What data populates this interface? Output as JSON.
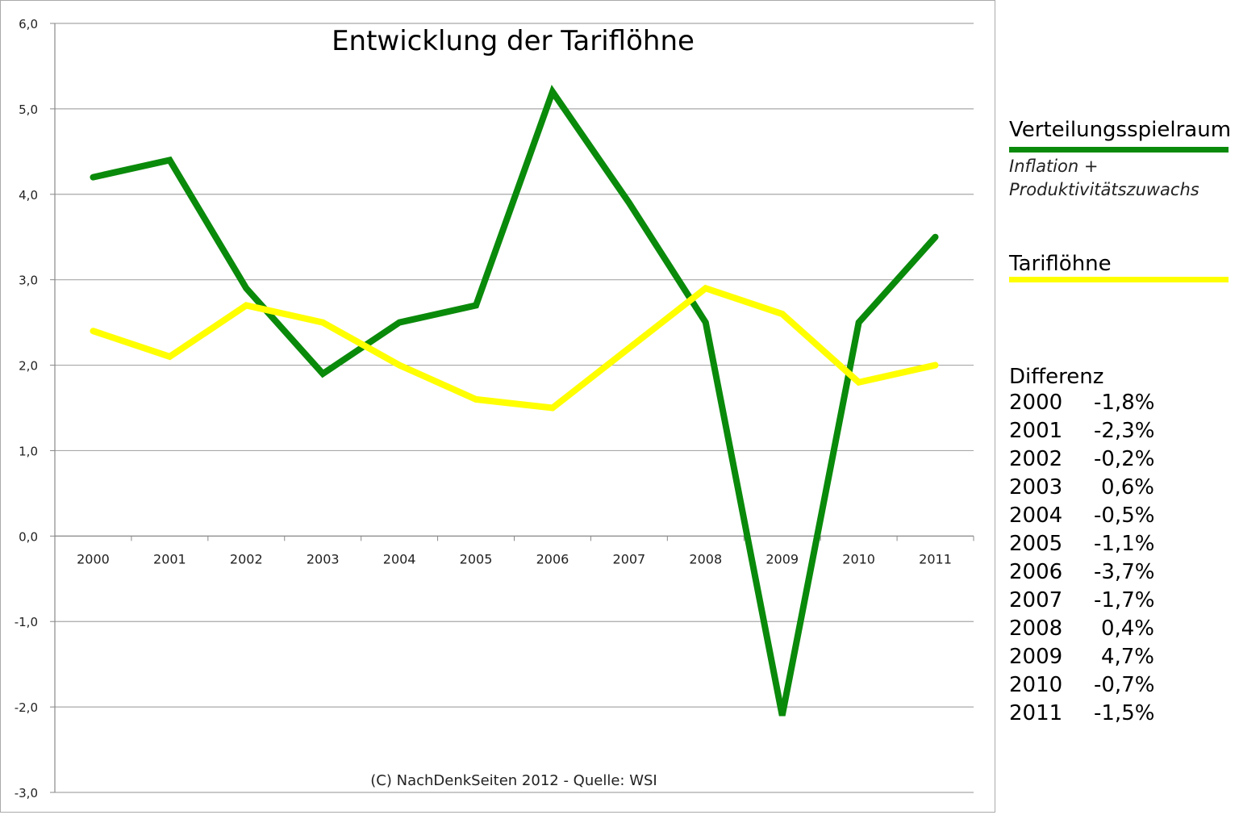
{
  "chart_data": {
    "type": "line",
    "title": "Entwicklung der Tariflöhne",
    "source": "(C) NachDenkSeiten 2012  - Quelle: WSI",
    "categories": [
      "2000",
      "2001",
      "2002",
      "2003",
      "2004",
      "2005",
      "2006",
      "2007",
      "2008",
      "2009",
      "2010",
      "2011"
    ],
    "ylim": [
      -3,
      6
    ],
    "yticks": [
      "-3,0",
      "-2,0",
      "-1,0",
      "0,0",
      "1,0",
      "2,0",
      "3,0",
      "4,0",
      "5,0",
      "6,0"
    ],
    "grid": true,
    "legend_position": "right",
    "series": [
      {
        "name": "Verteilungsspielraum",
        "subtitle_lines": [
          "Inflation +",
          "Produktivitätszuwachs"
        ],
        "color": "#0a8a0a",
        "values": [
          4.2,
          4.4,
          2.9,
          1.9,
          2.5,
          2.7,
          5.2,
          3.9,
          2.5,
          -2.1,
          2.5,
          3.5
        ]
      },
      {
        "name": "Tariflöhne",
        "color": "#ffff00",
        "values": [
          2.4,
          2.1,
          2.7,
          2.5,
          2.0,
          1.6,
          1.5,
          2.2,
          2.9,
          2.6,
          1.8,
          2.0
        ]
      }
    ],
    "difference_table": {
      "title": "Differenz",
      "rows": [
        {
          "year": "2000",
          "value": "-1,8%"
        },
        {
          "year": "2001",
          "value": "-2,3%"
        },
        {
          "year": "2002",
          "value": "-0,2%"
        },
        {
          "year": "2003",
          "value": "0,6%"
        },
        {
          "year": "2004",
          "value": "-0,5%"
        },
        {
          "year": "2005",
          "value": "-1,1%"
        },
        {
          "year": "2006",
          "value": "-3,7%"
        },
        {
          "year": "2007",
          "value": "-1,7%"
        },
        {
          "year": "2008",
          "value": "0,4%"
        },
        {
          "year": "2009",
          "value": "4,7%"
        },
        {
          "year": "2010",
          "value": "-0,7%"
        },
        {
          "year": "2011",
          "value": "-1,5%"
        }
      ]
    }
  }
}
